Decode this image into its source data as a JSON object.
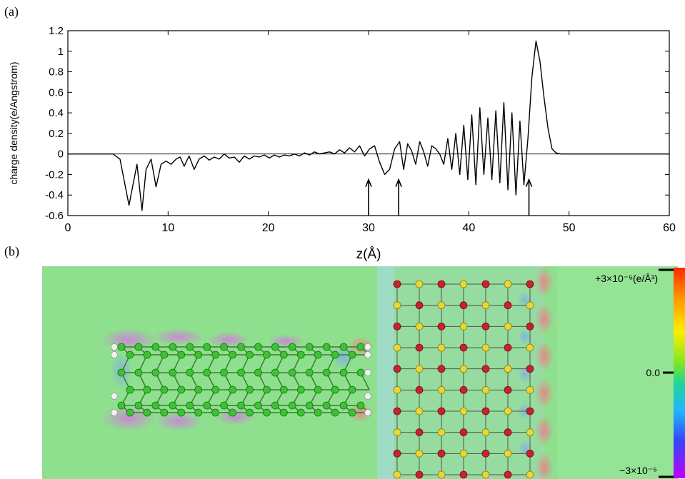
{
  "figure": {
    "panel_a_label": "(a)",
    "panel_b_label": "(b)"
  },
  "chart_data": {
    "type": "line",
    "title": "",
    "xlabel": "z(Å)",
    "ylabel": "charge density(e/Angstrom)",
    "xlim": [
      0,
      60
    ],
    "ylim": [
      -0.6,
      1.2
    ],
    "xticks": [
      0,
      10,
      20,
      30,
      40,
      50,
      60
    ],
    "yticks": [
      -0.6,
      -0.4,
      -0.2,
      0,
      0.2,
      0.4,
      0.6,
      0.8,
      1,
      1.2
    ],
    "ytick_labels": [
      "-0.6",
      "-0.4",
      "-0.2",
      "0",
      "0.2",
      "0.4",
      "0.6",
      "0.8",
      "1",
      "1.2"
    ],
    "grid": false,
    "reference_line_y": 0,
    "arrows_at_x": [
      30,
      33,
      46
    ],
    "series": [
      {
        "color": "#000000",
        "x": [
          0,
          4.5,
          5.2,
          5.6,
          6.1,
          6.5,
          6.9,
          7.4,
          7.8,
          8.3,
          8.8,
          9.3,
          9.8,
          10.3,
          10.8,
          11.2,
          11.6,
          12.1,
          12.6,
          13.1,
          13.6,
          14.1,
          14.6,
          15.1,
          15.6,
          16.1,
          16.6,
          17.1,
          17.6,
          18.1,
          18.6,
          19.1,
          19.6,
          20.1,
          20.6,
          21.1,
          21.6,
          22.1,
          22.6,
          23.1,
          23.6,
          24.1,
          24.6,
          25.1,
          25.6,
          26.1,
          26.6,
          27.1,
          27.6,
          28.1,
          28.6,
          29.1,
          29.6,
          30.1,
          30.6,
          31.1,
          31.6,
          32.1,
          32.6,
          33.1,
          33.5,
          33.9,
          34.3,
          34.7,
          35.1,
          35.5,
          35.9,
          36.3,
          36.7,
          37.1,
          37.5,
          37.9,
          38.3,
          38.7,
          39.1,
          39.5,
          39.9,
          40.3,
          40.7,
          41.1,
          41.5,
          41.9,
          42.3,
          42.7,
          43.1,
          43.5,
          43.9,
          44.3,
          44.7,
          45.1,
          45.5,
          45.9,
          46.3,
          46.7,
          47.1,
          47.5,
          47.9,
          48.3,
          48.7,
          49.2,
          60
        ],
        "y": [
          0,
          0,
          -0.05,
          -0.25,
          -0.5,
          -0.3,
          -0.1,
          -0.55,
          -0.15,
          -0.05,
          -0.32,
          -0.1,
          -0.07,
          -0.1,
          -0.05,
          -0.03,
          -0.12,
          -0.02,
          -0.15,
          -0.05,
          -0.02,
          -0.06,
          -0.03,
          -0.05,
          0.0,
          -0.04,
          -0.03,
          -0.08,
          -0.02,
          -0.05,
          -0.02,
          -0.03,
          -0.01,
          -0.04,
          -0.01,
          -0.03,
          -0.01,
          -0.02,
          0.0,
          -0.02,
          0.01,
          -0.01,
          0.02,
          0.0,
          0.01,
          0.02,
          0.0,
          0.04,
          0.01,
          0.06,
          0.02,
          0.08,
          -0.02,
          0.05,
          0.08,
          -0.08,
          -0.2,
          -0.15,
          0.05,
          0.12,
          -0.15,
          0.1,
          0.03,
          -0.1,
          0.12,
          0.02,
          -0.12,
          0.08,
          0.05,
          0.0,
          -0.1,
          0.15,
          -0.15,
          0.2,
          -0.2,
          0.28,
          -0.25,
          0.38,
          -0.3,
          0.45,
          -0.2,
          0.35,
          -0.25,
          0.42,
          -0.28,
          0.5,
          -0.35,
          0.4,
          -0.4,
          0.32,
          -0.3,
          0.15,
          0.75,
          1.1,
          0.9,
          0.55,
          0.25,
          0.05,
          0.01,
          0,
          0
        ]
      }
    ],
    "colorbar": {
      "max_label": "+3×10⁻⁵(e/Å³)",
      "mid_label": "0.0",
      "min_label": "−3×10⁻⁵"
    }
  }
}
